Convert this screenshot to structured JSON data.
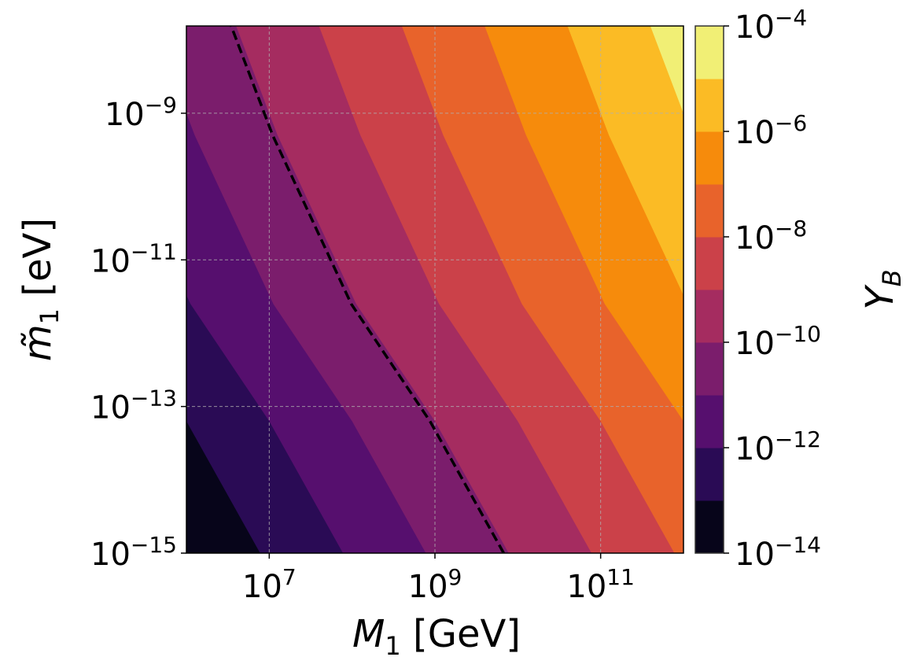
{
  "chart_data": {
    "type": "contourf",
    "xlabel": {
      "symbol": "M",
      "sub": "1",
      "unit": "[GeV]"
    },
    "ylabel": {
      "symbol": "m̃",
      "sub": "1",
      "unit": "[eV]"
    },
    "colorbar_label": {
      "symbol": "Y",
      "sub": "B"
    },
    "x_scale": "log",
    "y_scale": "log",
    "xlim": [
      1000000.0,
      1000000000000.0
    ],
    "ylim": [
      1e-15,
      1.55e-08
    ],
    "grid": true,
    "x_ticks": [
      {
        "value": 10000000.0,
        "base": "10",
        "exp": "7"
      },
      {
        "value": 1000000000.0,
        "base": "10",
        "exp": "9"
      },
      {
        "value": 100000000000.0,
        "base": "10",
        "exp": "11"
      }
    ],
    "y_ticks": [
      {
        "value": 1e-09,
        "base": "10",
        "exp": "−9"
      },
      {
        "value": 1e-11,
        "base": "10",
        "exp": "−11"
      },
      {
        "value": 1e-13,
        "base": "10",
        "exp": "−13"
      },
      {
        "value": 1e-15,
        "base": "10",
        "exp": "−15"
      }
    ],
    "colorbar_ticks": [
      {
        "value": 0.0001,
        "base": "10",
        "exp": "−4"
      },
      {
        "value": 1e-06,
        "base": "10",
        "exp": "−6"
      },
      {
        "value": 1e-08,
        "base": "10",
        "exp": "−8"
      },
      {
        "value": 1e-10,
        "base": "10",
        "exp": "−10"
      },
      {
        "value": 1e-12,
        "base": "10",
        "exp": "−12"
      },
      {
        "value": 1e-14,
        "base": "10",
        "exp": "−14"
      }
    ],
    "levels": [
      1e-14,
      1e-13,
      1e-12,
      1e-11,
      1e-10,
      1e-09,
      1e-08,
      1e-07,
      1e-06,
      1e-05,
      0.0001
    ],
    "colormap": "inferno",
    "band_colors": [
      "#07051a",
      "#2a0b55",
      "#560f6e",
      "#7b1d6c",
      "#a52c60",
      "#cb4149",
      "#e8632b",
      "#f68b0c",
      "#fbbb25",
      "#f1ef75"
    ],
    "contour_m1_values": [
      1e-15,
      6.3e-14,
      2.5e-12,
      5e-10,
      1.55e-08
    ],
    "contours": [
      {
        "level": 1e-13,
        "M1": [
          7760000.0,
          1000000.0,
          112000.0,
          12600.0,
          3980.0
        ]
      },
      {
        "level": 1e-12,
        "M1": [
          77600000.0,
          10000000.0,
          1120000.0,
          126000.0,
          39800.0
        ]
      },
      {
        "level": 1e-11,
        "M1": [
          776000000.0,
          100000000.0,
          11200000.0,
          1260000.0,
          398000.0
        ]
      },
      {
        "level": 1e-10,
        "M1": [
          7760000000.0,
          1000000000.0,
          112000000.0,
          12600000.0,
          3980000.0
        ]
      },
      {
        "level": 1e-09,
        "M1": [
          77600000000.0,
          10000000000.0,
          1120000000.0,
          126000000.0,
          39800000.0
        ]
      },
      {
        "level": 1e-08,
        "M1": [
          776000000000.0,
          100000000000.0,
          11200000000.0,
          1260000000.0,
          398000000.0
        ]
      },
      {
        "level": 1e-07,
        "M1": [
          7760000000000.0,
          1000000000000.0,
          112000000000.0,
          12600000000.0,
          3980000000.0
        ]
      },
      {
        "level": 1e-06,
        "M1": [
          77600000000000.0,
          10000000000000.0,
          1120000000000.0,
          126000000000.0,
          39800000000.0
        ]
      },
      {
        "level": 1e-05,
        "M1": [
          776000000000000.0,
          100000000000000.0,
          11200000000000.0,
          1260000000000.0,
          398000000000.0
        ]
      }
    ],
    "dashed_contour": {
      "level": 8.7e-11,
      "color": "#000000",
      "M1": [
        6760000000.0,
        871000000.0,
        97700000.0,
        11000000.0,
        3470000.0
      ]
    }
  }
}
